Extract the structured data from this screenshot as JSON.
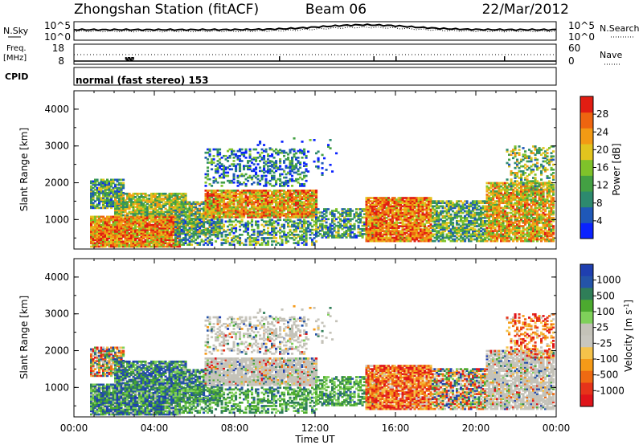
{
  "header": {
    "title": "Zhongshan Station (fitACF)",
    "beam": "Beam 06",
    "date": "22/Mar/2012"
  },
  "sky_panel": {
    "left_label": "N.Sky",
    "left_ticks": [
      "10^5",
      "10^0"
    ],
    "right_ticks": [
      "10^5",
      "10^0"
    ],
    "right_label": "N.Search"
  },
  "freq_panel": {
    "left_label_top": "Freq.",
    "left_label_bottom": "[MHz]",
    "left_ticks": [
      "18",
      "8"
    ],
    "right_ticks": [
      "60",
      "0"
    ],
    "right_label": "Nave"
  },
  "cpid_panel": {
    "label": "CPID",
    "mode": "normal (fast stereo) 153"
  },
  "x_axis": {
    "ticks": [
      "00:00",
      "04:00",
      "08:00",
      "12:00",
      "16:00",
      "20:00",
      "00:00"
    ],
    "label": "Time UT"
  },
  "chart_data": [
    {
      "type": "heatmap",
      "name": "power",
      "ylabel": "Slant Range [km]",
      "yticks": [
        "1000",
        "2000",
        "3000",
        "4000"
      ],
      "ylim": [
        200,
        4500
      ],
      "xlim": [
        0,
        24
      ],
      "colorbar": {
        "label": "Power [dB]",
        "ticks": [
          "4",
          "8",
          "12",
          "16",
          "20",
          "24",
          "28"
        ],
        "colors": [
          "#0a22ff",
          "#1f58b8",
          "#2d8a6e",
          "#43a043",
          "#7fc22a",
          "#e2c41e",
          "#f39a14",
          "#ee6510",
          "#e11d12"
        ]
      }
    },
    {
      "type": "heatmap",
      "name": "velocity",
      "ylabel": "Slant Range [km]",
      "yticks": [
        "1000",
        "2000",
        "3000",
        "4000"
      ],
      "ylim": [
        200,
        4500
      ],
      "xlim": [
        0,
        24
      ],
      "colorbar": {
        "label": "Velocity [m s^-1]",
        "ticks": [
          "1000",
          "500",
          "100",
          "25",
          "-25",
          "-100",
          "-500",
          "-1000"
        ],
        "colors": [
          "#1f3fb0",
          "#2454a8",
          "#2f7e58",
          "#4caa2f",
          "#7fd05a",
          "#c4c2b8",
          "#c8c6be",
          "#f5c24a",
          "#f59a18",
          "#ef6a12",
          "#e6331a",
          "#e0141a"
        ]
      }
    }
  ]
}
